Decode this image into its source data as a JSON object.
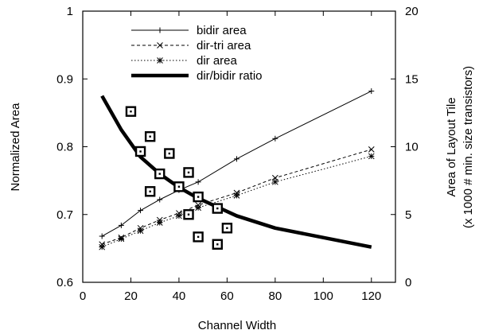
{
  "chart_data": {
    "type": "line",
    "xlabel": "Channel Width",
    "ylabel_left": "Normalized Area",
    "ylabel_right_line1": "Area of Layout Tile",
    "ylabel_right_line2": "(x 1000 # min. size transistors)",
    "xlim": [
      0,
      130
    ],
    "ylim_left": [
      0.6,
      1.0
    ],
    "ylim_right": [
      0,
      20
    ],
    "x_ticks": [
      0,
      20,
      40,
      60,
      80,
      100,
      120
    ],
    "y_left_ticks": [
      0.6,
      0.7,
      0.8,
      0.9,
      1.0
    ],
    "y_left_tick_labels": [
      "0.6",
      "0.7",
      "0.8",
      "0.9",
      "1"
    ],
    "y_right_ticks": [
      0,
      5,
      10,
      15,
      20
    ],
    "legend_position": "top-left",
    "series": [
      {
        "name": "bidir area",
        "axis": "right",
        "style": "solid-thin",
        "marker": "plus",
        "x": [
          8,
          16,
          24,
          32,
          40,
          48,
          64,
          80,
          120
        ],
        "y": [
          3.4,
          4.2,
          5.3,
          6.1,
          6.8,
          7.4,
          9.1,
          10.6,
          14.1
        ]
      },
      {
        "name": "dir-tri area",
        "axis": "right",
        "style": "dashed",
        "marker": "x",
        "x": [
          8,
          16,
          24,
          32,
          40,
          48,
          64,
          80,
          120
        ],
        "y": [
          2.8,
          3.3,
          4.0,
          4.6,
          5.1,
          5.7,
          6.6,
          7.7,
          9.8
        ]
      },
      {
        "name": "dir area",
        "axis": "right",
        "style": "dotted",
        "marker": "star",
        "x": [
          8,
          16,
          24,
          32,
          40,
          48,
          64,
          80,
          120
        ],
        "y": [
          2.6,
          3.2,
          3.8,
          4.4,
          4.9,
          5.5,
          6.4,
          7.4,
          9.3
        ]
      },
      {
        "name": "dir/bidir ratio",
        "axis": "left",
        "style": "solid-thick",
        "marker": "none",
        "x": [
          8,
          16,
          24,
          32,
          40,
          48,
          64,
          80,
          120
        ],
        "y": [
          0.875,
          0.825,
          0.785,
          0.76,
          0.74,
          0.724,
          0.698,
          0.68,
          0.652
        ]
      },
      {
        "name": "",
        "axis": "left",
        "style": "none",
        "marker": "dotted-square",
        "x": [
          20,
          24,
          28,
          28,
          32,
          36,
          40,
          44,
          44,
          48,
          48,
          56,
          56,
          60
        ],
        "y": [
          0.852,
          0.793,
          0.815,
          0.734,
          0.76,
          0.79,
          0.741,
          0.762,
          0.7,
          0.726,
          0.667,
          0.709,
          0.656,
          0.68
        ]
      }
    ]
  }
}
